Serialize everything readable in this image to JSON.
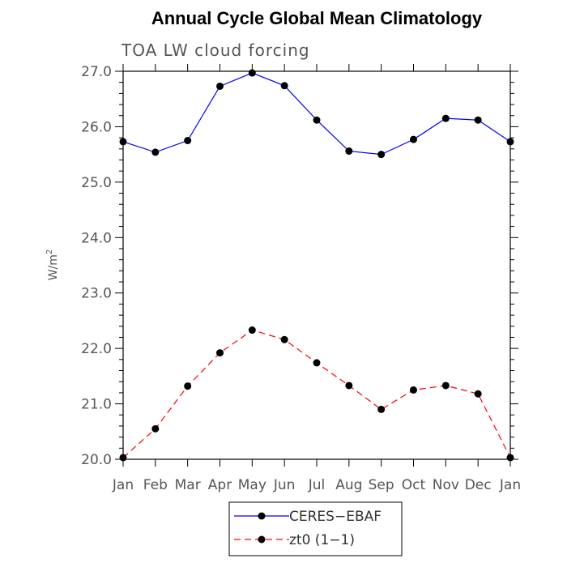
{
  "chart_data": {
    "type": "line",
    "title": "Annual Cycle Global Mean Climatology",
    "subtitle": "TOA LW cloud forcing",
    "xlabel": "",
    "ylabel": "W/m",
    "ylabel_superscript": "2",
    "categories": [
      "Jan",
      "Feb",
      "Mar",
      "Apr",
      "May",
      "Jun",
      "Jul",
      "Aug",
      "Sep",
      "Oct",
      "Nov",
      "Dec",
      "Jan"
    ],
    "ylim": [
      20.0,
      27.0
    ],
    "yticks": [
      "20.0",
      "21.0",
      "22.0",
      "23.0",
      "24.0",
      "25.0",
      "26.0",
      "27.0"
    ],
    "grid": false,
    "legend_position": "bottom-center",
    "series": [
      {
        "name": "CERES−EBAF",
        "color": "#0000ff",
        "line_style": "solid",
        "marker": "circle",
        "values": [
          25.73,
          25.54,
          25.75,
          26.73,
          26.97,
          26.74,
          26.12,
          25.56,
          25.5,
          25.77,
          26.15,
          26.12,
          25.73
        ]
      },
      {
        "name": "zt0 (1−1)",
        "color": "#ff0000",
        "line_style": "dashed",
        "marker": "circle",
        "values": [
          20.03,
          20.55,
          21.32,
          21.92,
          22.33,
          22.16,
          21.74,
          21.33,
          20.9,
          21.25,
          21.33,
          21.18,
          20.03
        ]
      }
    ]
  }
}
